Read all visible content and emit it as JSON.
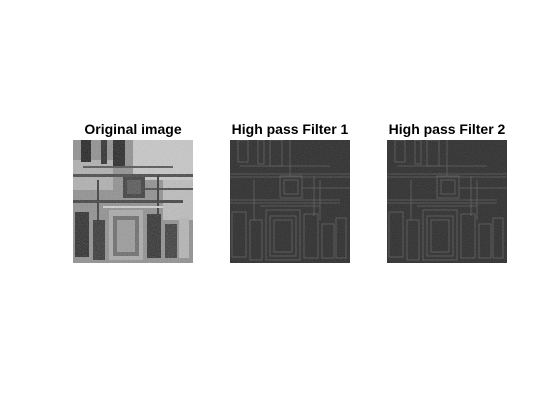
{
  "figure": {
    "panels": [
      {
        "title": "Original image",
        "icon": "circuit-grayscale-image"
      },
      {
        "title": "High pass Filter 1",
        "icon": "highpass-edge-image"
      },
      {
        "title": "High pass Filter 2",
        "icon": "highpass-edge-image"
      }
    ]
  },
  "colors": {
    "background": "#ffffff",
    "original_base": "#8c8c8c",
    "filtered_base": "#2b2b2b",
    "filtered_edge": "#5a5a5a"
  }
}
